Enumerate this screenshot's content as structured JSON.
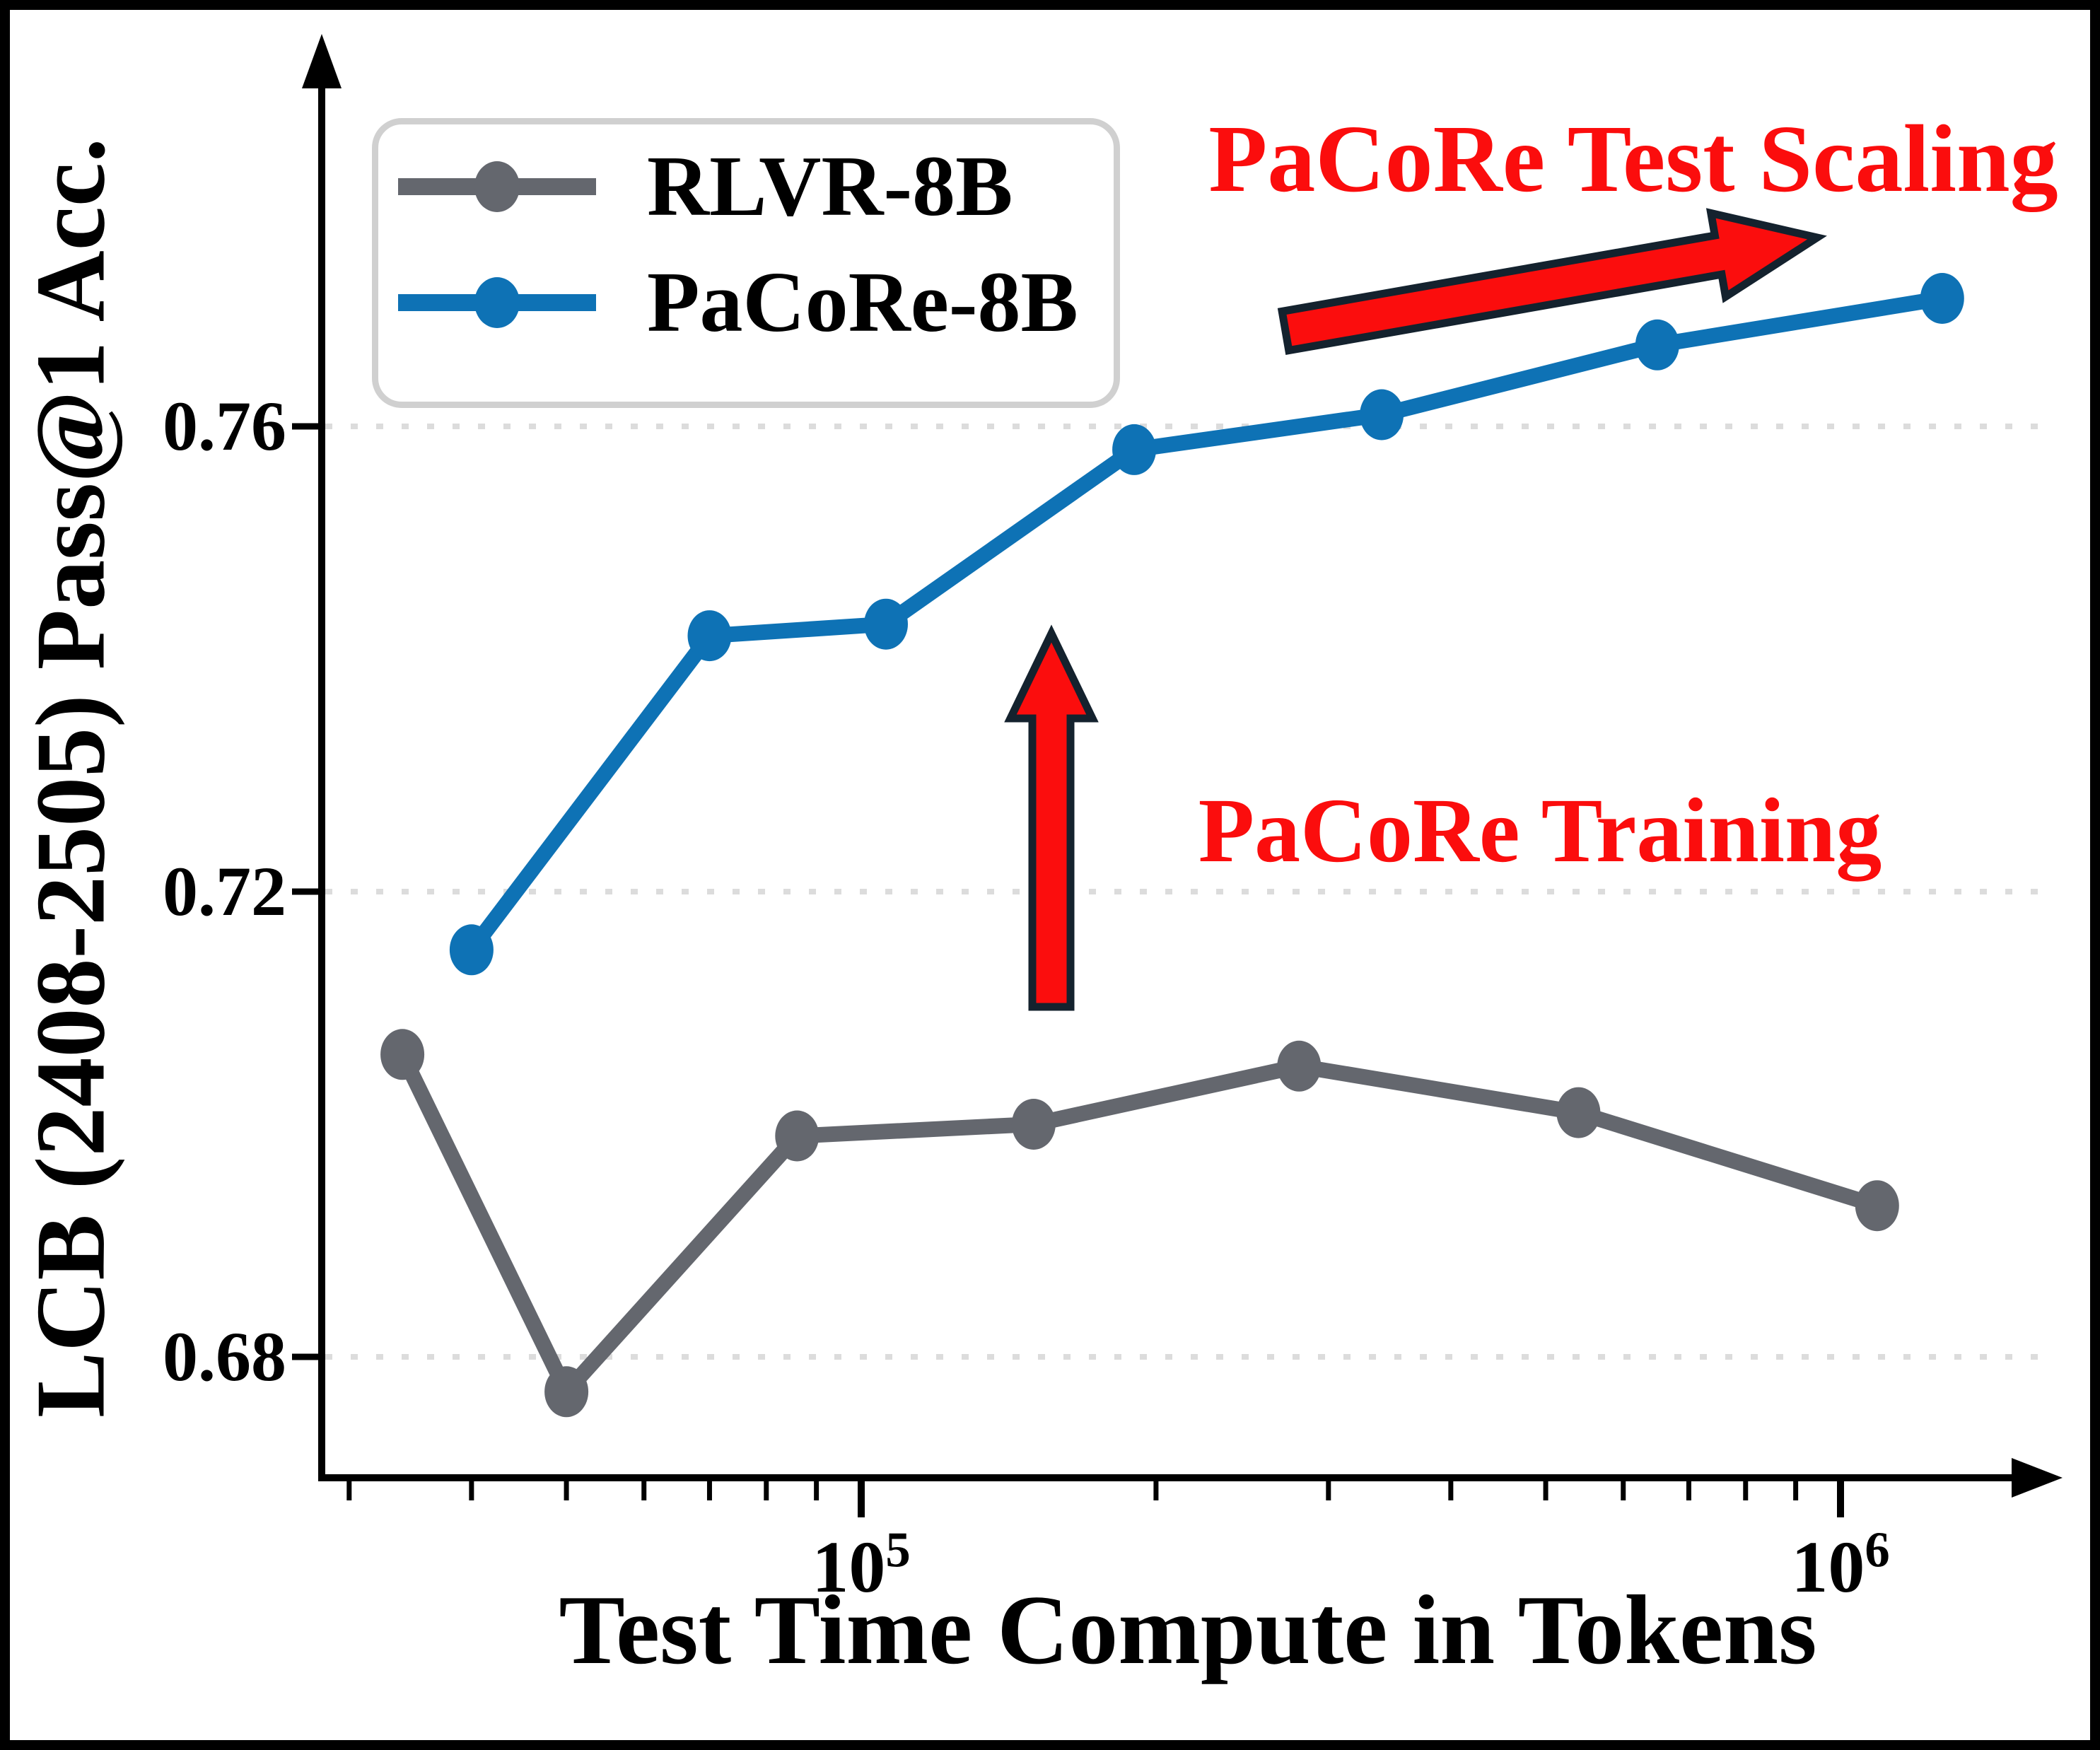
{
  "figure": {
    "background": "#ffffff",
    "border_color": "#000000"
  },
  "axes": {
    "x_label": "Test Time Compute in Tokens",
    "y_label": "LCB (2408-2505) Pass@1 Acc.",
    "x_scale": "log",
    "grid": "dotted horizontal at y ticks",
    "x_major_ticks": [
      {
        "base": "10",
        "exp": "5",
        "value": 100000
      },
      {
        "base": "10",
        "exp": "6",
        "value": 1000000
      }
    ],
    "x_minor_ticks": [
      30000,
      40000,
      50000,
      60000,
      70000,
      80000,
      90000,
      200000,
      300000,
      400000,
      500000,
      600000,
      700000,
      800000,
      900000
    ],
    "y_ticks": [
      {
        "label": "0.76",
        "value": 0.76
      },
      {
        "label": "0.72",
        "value": 0.72
      },
      {
        "label": "0.68",
        "value": 0.68
      }
    ],
    "spine_color": "#000000",
    "grid_color": "#dcdcdc"
  },
  "legend": {
    "position": "upper left",
    "entries": [
      {
        "label": "RLVR-8B",
        "color": "#64676e"
      },
      {
        "label": "PaCoRe-8B",
        "color": "#0e72b5"
      }
    ]
  },
  "annotations": {
    "test_scaling": {
      "text": "PaCoRe Test Scaling",
      "color": "#fb0d0d"
    },
    "training": {
      "text": "PaCoRe Training",
      "color": "#fb0d0d"
    },
    "arrow_fill": "#fb0d0d",
    "arrow_outline": "#14222e"
  },
  "chart_data": {
    "type": "line",
    "title": "",
    "xlabel": "Test Time Compute in Tokens",
    "ylabel": "LCB (2408-2505) Pass@1 Acc.",
    "x_scale": "log",
    "xlim": [
      28000,
      1650000
    ],
    "ylim": [
      0.669,
      0.792
    ],
    "legend_position": "upper-left",
    "series": [
      {
        "name": "RLVR-8B",
        "color": "#64676e",
        "x": [
          34000,
          50000,
          86000,
          150000,
          280000,
          540000,
          1090000
        ],
        "values": [
          0.706,
          0.677,
          0.699,
          0.7,
          0.705,
          0.701,
          0.693
        ]
      },
      {
        "name": "PaCoRe-8B",
        "color": "#0e72b5",
        "x": [
          40000,
          70000,
          106000,
          190000,
          340000,
          650000,
          1270000
        ],
        "values": [
          0.715,
          0.742,
          0.743,
          0.758,
          0.761,
          0.767,
          0.771
        ]
      }
    ]
  }
}
